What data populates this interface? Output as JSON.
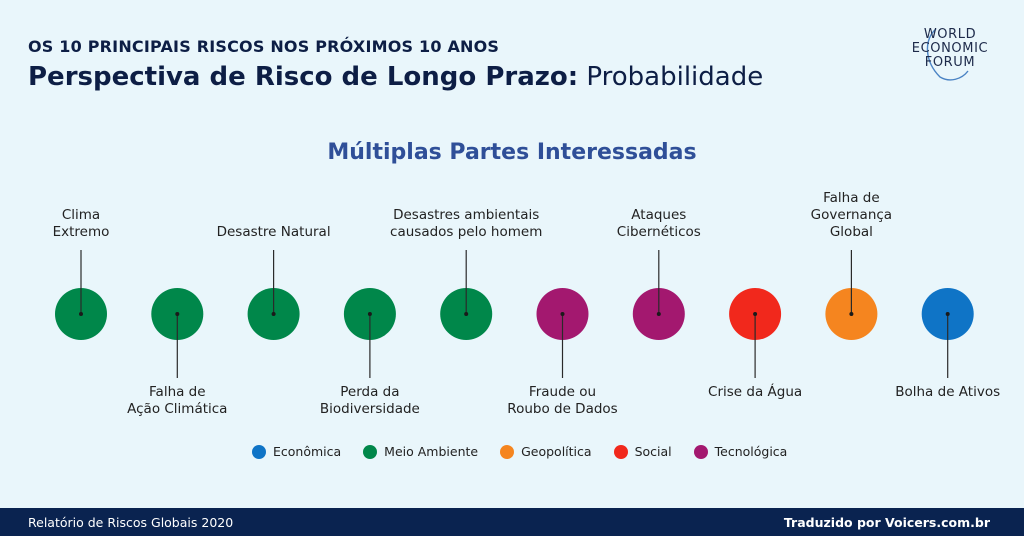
{
  "header": {
    "kicker": "OS 10 PRINCIPAIS RISCOS NOS PRÓXIMOS 10 ANOS",
    "title_bold": "Perspectiva de Risco de Longo Prazo:",
    "title_regular": "Probabilidade"
  },
  "logo": {
    "line1": "WORLD",
    "line2": "ECONOMIC",
    "line3": "FORUM"
  },
  "subtitle": "Múltiplas Partes Interessadas",
  "colors": {
    "economica": "#0f74c6",
    "meio_ambiente": "#00874a",
    "geopolitica": "#f5851f",
    "social": "#f1281c",
    "tecnologica": "#a3186f"
  },
  "risks": [
    {
      "label": "Clima\nExtremo",
      "category": "meio_ambiente",
      "position": "above"
    },
    {
      "label": "Falha de\nAção Climática",
      "category": "meio_ambiente",
      "position": "below"
    },
    {
      "label": "Desastre Natural",
      "category": "meio_ambiente",
      "position": "above"
    },
    {
      "label": "Perda da\nBiodiversidade",
      "category": "meio_ambiente",
      "position": "below"
    },
    {
      "label": "Desastres ambientais\ncausados pelo homem",
      "category": "meio_ambiente",
      "position": "above"
    },
    {
      "label": "Fraude ou\nRoubo de Dados",
      "category": "tecnologica",
      "position": "below"
    },
    {
      "label": "Ataques\nCibernéticos",
      "category": "tecnologica",
      "position": "above"
    },
    {
      "label": "Crise da Água",
      "category": "social",
      "position": "below"
    },
    {
      "label": "Falha de\nGovernança\nGlobal",
      "category": "geopolitica",
      "position": "above"
    },
    {
      "label": "Bolha de Ativos",
      "category": "economica",
      "position": "below"
    }
  ],
  "legend": [
    {
      "label": "Econômica",
      "category": "economica"
    },
    {
      "label": "Meio Ambiente",
      "category": "meio_ambiente"
    },
    {
      "label": "Geopolítica",
      "category": "geopolitica"
    },
    {
      "label": "Social",
      "category": "social"
    },
    {
      "label": "Tecnológica",
      "category": "tecnologica"
    }
  ],
  "footer": {
    "left": "Relatório de Riscos Globais 2020",
    "right": "Traduzido por Voicers.com.br"
  }
}
